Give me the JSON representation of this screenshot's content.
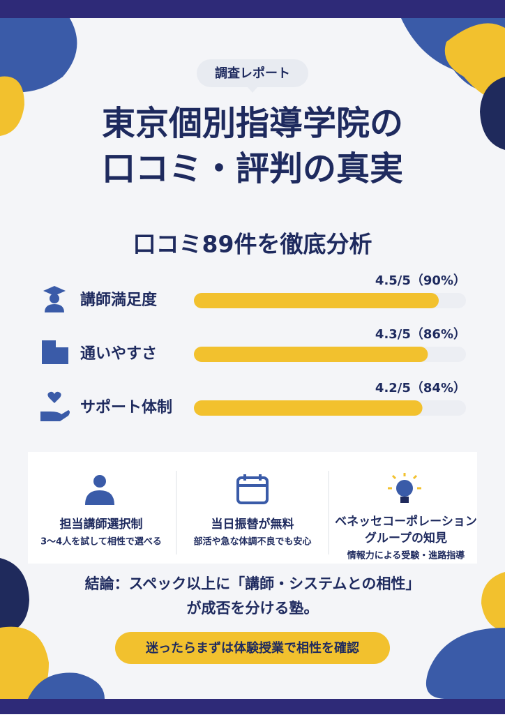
{
  "header": {
    "tag": "調査レポート",
    "title_lines": [
      "東京個別指導学院の",
      "口コミ・評判の真実"
    ]
  },
  "chart_data": {
    "type": "bar",
    "orientation": "horizontal",
    "title": "口コミ89件を徹底分析",
    "categories": [
      "講師満足度",
      "通いやすさ",
      "サポート体制"
    ],
    "values": [
      90,
      86,
      84
    ],
    "value_labels": [
      "4.5/5（90%）",
      "4.3/5（86%）",
      "4.2/5（84%）"
    ],
    "xlim": [
      0,
      100
    ],
    "color": "#f2c12e"
  },
  "features": [
    {
      "title_lines": [
        "担当講師選択制"
      ],
      "text": "3〜4人を試して相性で選べる"
    },
    {
      "title_lines": [
        "当日振替が無料"
      ],
      "text": "部活や急な体調不良でも安心"
    },
    {
      "title_lines": [
        "ベネッセコーポレーション",
        "グループの知見"
      ],
      "text": "情報力による受験・進路指導"
    }
  ],
  "conclusion": {
    "lines": [
      "結論：スペック以上に「講師・システムとの相性」",
      "が成否を分ける塾。"
    ]
  },
  "cta": "迷ったらまずは体験授業で相性を確認"
}
